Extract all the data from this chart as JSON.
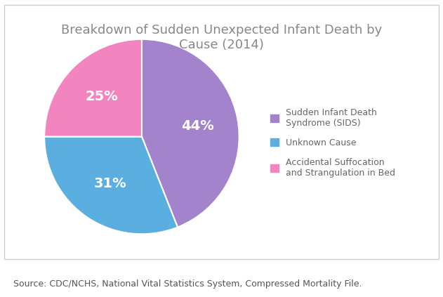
{
  "title": "Breakdown of Sudden Unexpected Infant Death by\nCause (2014)",
  "slices": [
    44,
    31,
    25
  ],
  "labels": [
    "Sudden Infant Death\nSyndrome (SIDS)",
    "Unknown Cause",
    "Accidental Suffocation\nand Strangulation in Bed"
  ],
  "colors": [
    "#a384cc",
    "#5aafe0",
    "#f285c0"
  ],
  "pct_labels": [
    "44%",
    "31%",
    "25%"
  ],
  "source_text": "Source: CDC/NCHS, National Vital Statistics System, Compressed Mortality File.",
  "background_color": "#ffffff",
  "label_text_color": "#ffffff",
  "title_color": "#888888",
  "legend_text_color": "#666666",
  "source_fontsize": 9,
  "title_fontsize": 13,
  "pct_fontsize": 14
}
